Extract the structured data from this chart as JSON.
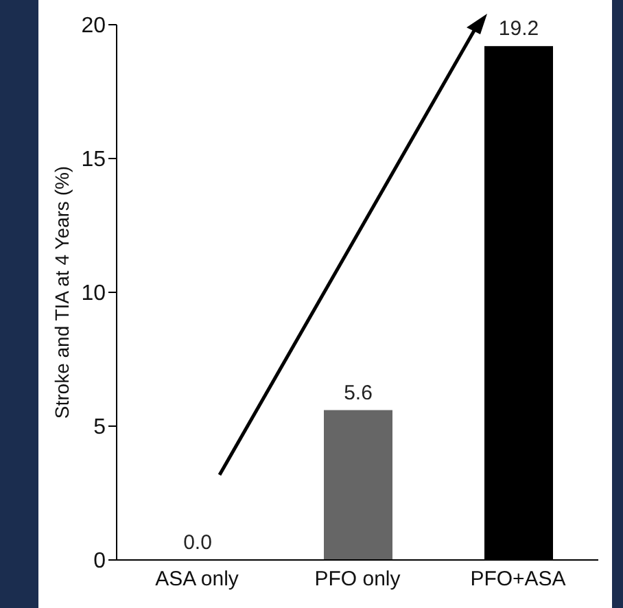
{
  "chart_data": {
    "type": "bar",
    "ylabel": "Stroke and TIA at 4 Years (%)",
    "categories": [
      "ASA only",
      "PFO only",
      "PFO+ASA"
    ],
    "values": [
      0.0,
      5.6,
      19.2
    ],
    "colors": [
      "#000000",
      "#666666",
      "#000000"
    ],
    "value_labels": [
      "0.0",
      "5.6",
      "19.2"
    ],
    "ylim": [
      0,
      20
    ],
    "yticks": [
      0,
      5,
      10,
      15,
      20
    ],
    "grid": false,
    "legend": false
  }
}
